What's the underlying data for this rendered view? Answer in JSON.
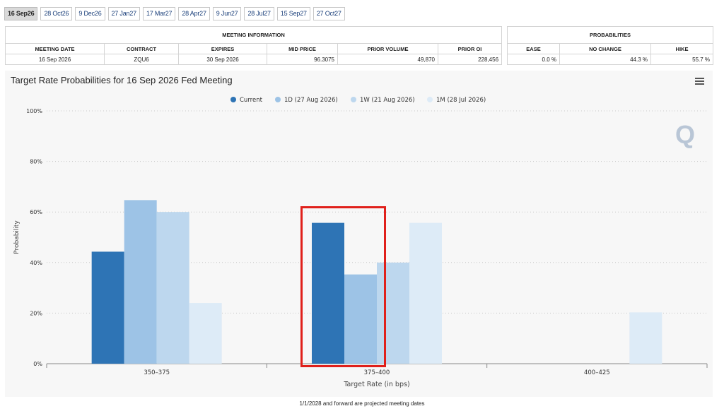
{
  "tabs": [
    "16 Sep26",
    "28 Oct26",
    "9 Dec26",
    "27 Jan27",
    "17 Mar27",
    "28 Apr27",
    "9 Jun27",
    "28 Jul27",
    "15 Sep27",
    "27 Oct27"
  ],
  "active_tab": 0,
  "meeting_info": {
    "header": "MEETING INFORMATION",
    "columns": [
      "MEETING DATE",
      "CONTRACT",
      "EXPIRES",
      "MID PRICE",
      "PRIOR VOLUME",
      "PRIOR OI"
    ],
    "row": [
      "16 Sep 2026",
      "ZQU6",
      "30 Sep 2026",
      "96.3075",
      "49,870",
      "228,456"
    ]
  },
  "probabilities": {
    "header": "PROBABILITIES",
    "columns": [
      "EASE",
      "NO CHANGE",
      "HIKE"
    ],
    "row": [
      "0.0 %",
      "44.3 %",
      "55.7 %"
    ]
  },
  "chart_title": "Target Rate Probabilities for 16 Sep 2026 Fed Meeting",
  "logo_text": "Q",
  "footnote": "1/1/2028 and forward are projected meeting dates",
  "colors": {
    "current": "#2e74b5",
    "1d": "#9dc3e6",
    "1w": "#bdd7ee",
    "1m": "#ddebf7",
    "highlight": "#e0201b"
  },
  "chart_data": {
    "type": "bar",
    "title": "Target Rate Probabilities for 16 Sep 2026 Fed Meeting",
    "xlabel": "Target Rate (in bps)",
    "ylabel": "Probability",
    "categories": [
      "350-375",
      "375-400",
      "400-425"
    ],
    "ylim": [
      0,
      100
    ],
    "yticks": [
      "0%",
      "20%",
      "40%",
      "60%",
      "80%",
      "100%"
    ],
    "legend_position": "top",
    "grid": true,
    "series": [
      {
        "name": "Current",
        "values": [
          44.3,
          55.7,
          0
        ]
      },
      {
        "name": "1D (27 Aug 2026)",
        "values": [
          64.7,
          35.3,
          0
        ]
      },
      {
        "name": "1W (21 Aug 2026)",
        "values": [
          60.0,
          40.0,
          0
        ]
      },
      {
        "name": "1M (28 Jul 2026)",
        "values": [
          24.0,
          55.7,
          20.3
        ]
      }
    ]
  }
}
